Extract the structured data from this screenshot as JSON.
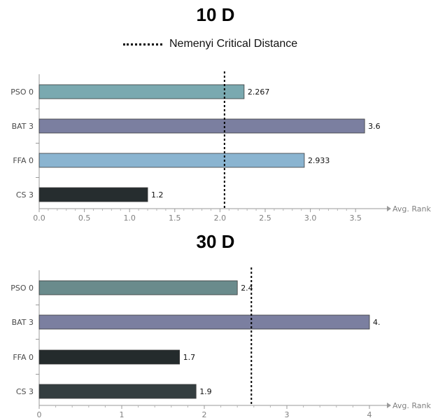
{
  "chart_data": [
    {
      "type": "bar",
      "orientation": "horizontal",
      "title": "10 D",
      "legend": {
        "label": "Nemenyi Critical Distance",
        "placement": "top-center"
      },
      "xlabel": "Avg. Rank",
      "categories": [
        "PSO 0",
        "BAT 3",
        "FFA 0",
        "CS 3"
      ],
      "values": [
        2.267,
        3.6,
        2.933,
        1.2
      ],
      "value_labels": [
        "2.267",
        "3.6",
        "2.933",
        "1.2"
      ],
      "colors": [
        "#7aa9b0",
        "#7b7fa0",
        "#8ab4d0",
        "#262d2f"
      ],
      "xlim": [
        0,
        3.8
      ],
      "xticks": [
        0,
        0.5,
        1,
        1.5,
        2,
        2.5,
        3,
        3.5
      ],
      "xtick_labels": [
        "0.0",
        "0.5",
        "1.0",
        "1.5",
        "2.0",
        "2.5",
        "3.0",
        "3.5"
      ],
      "critical_distance": 2.05,
      "grid": false
    },
    {
      "type": "bar",
      "orientation": "horizontal",
      "title": "30 D",
      "xlabel": "Avg. Rank",
      "categories": [
        "PSO 0",
        "BAT 3",
        "FFA 0",
        "CS 3"
      ],
      "values": [
        2.4,
        4.0,
        1.7,
        1.9
      ],
      "value_labels": [
        "2.4",
        "4.",
        "1.7",
        "1.9"
      ],
      "colors": [
        "#6a8b8c",
        "#7b7fa0",
        "#242b2c",
        "#343e40"
      ],
      "xlim": [
        0,
        4.2
      ],
      "xticks": [
        0,
        1,
        2,
        3,
        4
      ],
      "xtick_labels": [
        "0",
        "1",
        "2",
        "3",
        "4"
      ],
      "critical_distance": 2.57,
      "grid": false
    }
  ]
}
